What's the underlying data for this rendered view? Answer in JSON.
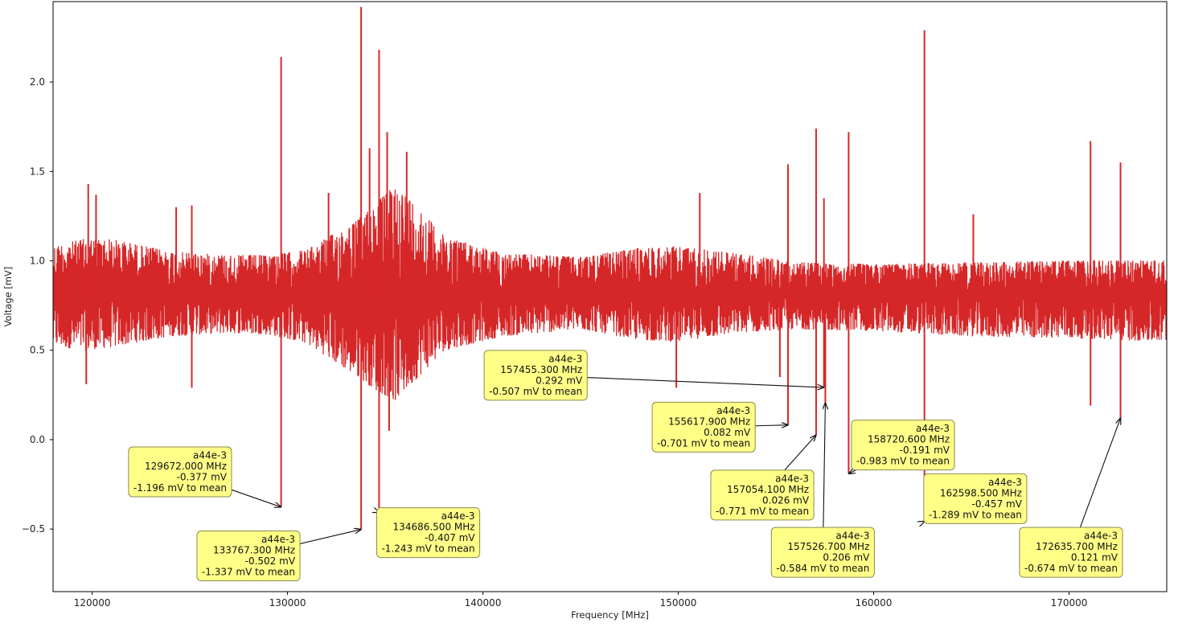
{
  "chart_data": {
    "type": "line",
    "title": "",
    "xlabel": "Frequency [MHz]",
    "ylabel": "Voltage [mV]",
    "xlim": [
      118000,
      175000
    ],
    "ylim": [
      -0.85,
      2.45
    ],
    "x_ticks": [
      {
        "value": 120000,
        "label": "120000"
      },
      {
        "value": 130000,
        "label": "130000"
      },
      {
        "value": 140000,
        "label": "140000"
      },
      {
        "value": 150000,
        "label": "150000"
      },
      {
        "value": 160000,
        "label": "160000"
      },
      {
        "value": 170000,
        "label": "170000"
      }
    ],
    "y_ticks": [
      {
        "value": -0.5,
        "label": "−0.5"
      },
      {
        "value": 0.0,
        "label": "0.0"
      },
      {
        "value": 0.5,
        "label": "0.5"
      },
      {
        "value": 1.0,
        "label": "1.0"
      },
      {
        "value": 1.5,
        "label": "1.5"
      },
      {
        "value": 2.0,
        "label": "2.0"
      }
    ],
    "grid": false,
    "series": [
      {
        "color": "#d62728",
        "mean_mV": 0.82,
        "envelope": {
          "x": [
            118000,
            119500,
            121000,
            124000,
            127000,
            129000,
            131000,
            132500,
            133500,
            134500,
            135500,
            136500,
            138000,
            141000,
            145000,
            148000,
            150000,
            153000,
            156000,
            160000,
            165000,
            170000,
            175000
          ],
          "upper": [
            1.08,
            1.12,
            1.12,
            1.05,
            1.03,
            1.03,
            1.06,
            1.16,
            1.22,
            1.32,
            1.42,
            1.32,
            1.14,
            1.04,
            1.02,
            1.07,
            1.08,
            1.04,
            0.99,
            0.98,
            0.99,
            1.0,
            1.0
          ],
          "lower": [
            0.53,
            0.5,
            0.52,
            0.58,
            0.6,
            0.59,
            0.54,
            0.43,
            0.36,
            0.28,
            0.22,
            0.33,
            0.5,
            0.58,
            0.62,
            0.56,
            0.55,
            0.6,
            0.62,
            0.61,
            0.58,
            0.57,
            0.55
          ]
        },
        "spikes": [
          {
            "x": 119800,
            "y": 1.43
          },
          {
            "x": 120200,
            "y": 1.37
          },
          {
            "x": 124300,
            "y": 1.3
          },
          {
            "x": 125100,
            "y": 1.31
          },
          {
            "x": 129672,
            "y": 2.14
          },
          {
            "x": 132100,
            "y": 1.38
          },
          {
            "x": 133767,
            "y": 2.42
          },
          {
            "x": 134200,
            "y": 1.63
          },
          {
            "x": 134686,
            "y": 2.18
          },
          {
            "x": 135100,
            "y": 1.72
          },
          {
            "x": 136100,
            "y": 1.61
          },
          {
            "x": 151100,
            "y": 1.38
          },
          {
            "x": 155617,
            "y": 1.54
          },
          {
            "x": 157054,
            "y": 1.74
          },
          {
            "x": 157455,
            "y": 1.35
          },
          {
            "x": 158720,
            "y": 1.72
          },
          {
            "x": 162598,
            "y": 2.29
          },
          {
            "x": 165100,
            "y": 1.26
          },
          {
            "x": 171100,
            "y": 1.67
          },
          {
            "x": 172635,
            "y": 1.55
          }
        ],
        "dips": [
          {
            "x": 119700,
            "y": 0.31
          },
          {
            "x": 125100,
            "y": 0.29
          },
          {
            "x": 129672,
            "y": -0.377
          },
          {
            "x": 133767,
            "y": -0.502
          },
          {
            "x": 134686,
            "y": -0.407
          },
          {
            "x": 135200,
            "y": 0.05
          },
          {
            "x": 149900,
            "y": 0.29
          },
          {
            "x": 155200,
            "y": 0.35
          },
          {
            "x": 155617,
            "y": 0.082
          },
          {
            "x": 157054,
            "y": 0.026
          },
          {
            "x": 157455,
            "y": 0.292
          },
          {
            "x": 157526,
            "y": 0.206
          },
          {
            "x": 158720,
            "y": -0.191
          },
          {
            "x": 162598,
            "y": -0.457
          },
          {
            "x": 171100,
            "y": 0.19
          },
          {
            "x": 172635,
            "y": 0.121
          }
        ]
      }
    ],
    "annotations": [
      {
        "x": 129672.0,
        "y": -0.377,
        "box_x": 124500,
        "box_y": -0.18,
        "lines": [
          "a44e-3",
          "129672.000 MHz",
          "-0.377 mV",
          "-1.196 mV to mean"
        ]
      },
      {
        "x": 133767.3,
        "y": -0.502,
        "box_x": 128000,
        "box_y": -0.65,
        "lines": [
          "a44e-3",
          "133767.300 MHz",
          "-0.502 mV",
          "-1.337 mV to mean"
        ]
      },
      {
        "x": 134686.5,
        "y": -0.407,
        "box_x": 137200,
        "box_y": -0.52,
        "lines": [
          "a44e-3",
          "134686.500 MHz",
          "-0.407 mV",
          "-1.243 mV to mean"
        ]
      },
      {
        "x": 157455.3,
        "y": 0.292,
        "box_x": 142700,
        "box_y": 0.36,
        "lines": [
          "a44e-3",
          "157455.300 MHz",
          "0.292 mV",
          "-0.507 mV to mean"
        ]
      },
      {
        "x": 155617.9,
        "y": 0.082,
        "box_x": 151300,
        "box_y": 0.07,
        "lines": [
          "a44e-3",
          "155617.900 MHz",
          "0.082 mV",
          "-0.701 mV to mean"
        ]
      },
      {
        "x": 157054.1,
        "y": 0.026,
        "box_x": 154300,
        "box_y": -0.31,
        "lines": [
          "a44e-3",
          "157054.100 MHz",
          "0.026 mV",
          "-0.771 mV to mean"
        ]
      },
      {
        "x": 157526.7,
        "y": 0.206,
        "box_x": 157400,
        "box_y": -0.63,
        "lines": [
          "a44e-3",
          "157526.700 MHz",
          "0.206 mV",
          "-0.584 mV to mean"
        ]
      },
      {
        "x": 158720.6,
        "y": -0.191,
        "box_x": 161500,
        "box_y": -0.03,
        "lines": [
          "a44e-3",
          "158720.600 MHz",
          "-0.191 mV",
          "-0.983 mV to mean"
        ]
      },
      {
        "x": 162598.5,
        "y": -0.457,
        "box_x": 165200,
        "box_y": -0.33,
        "lines": [
          "a44e-3",
          "162598.500 MHz",
          "-0.457 mV",
          "-1.289 mV to mean"
        ]
      },
      {
        "x": 172635.7,
        "y": 0.121,
        "box_x": 170100,
        "box_y": -0.63,
        "lines": [
          "a44e-3",
          "172635.700 MHz",
          "0.121 mV",
          "-0.674 mV to mean"
        ]
      }
    ],
    "annotation_style": {
      "face": "#ffff88",
      "edge": "#8a8a50",
      "arrow": "#111111"
    }
  }
}
